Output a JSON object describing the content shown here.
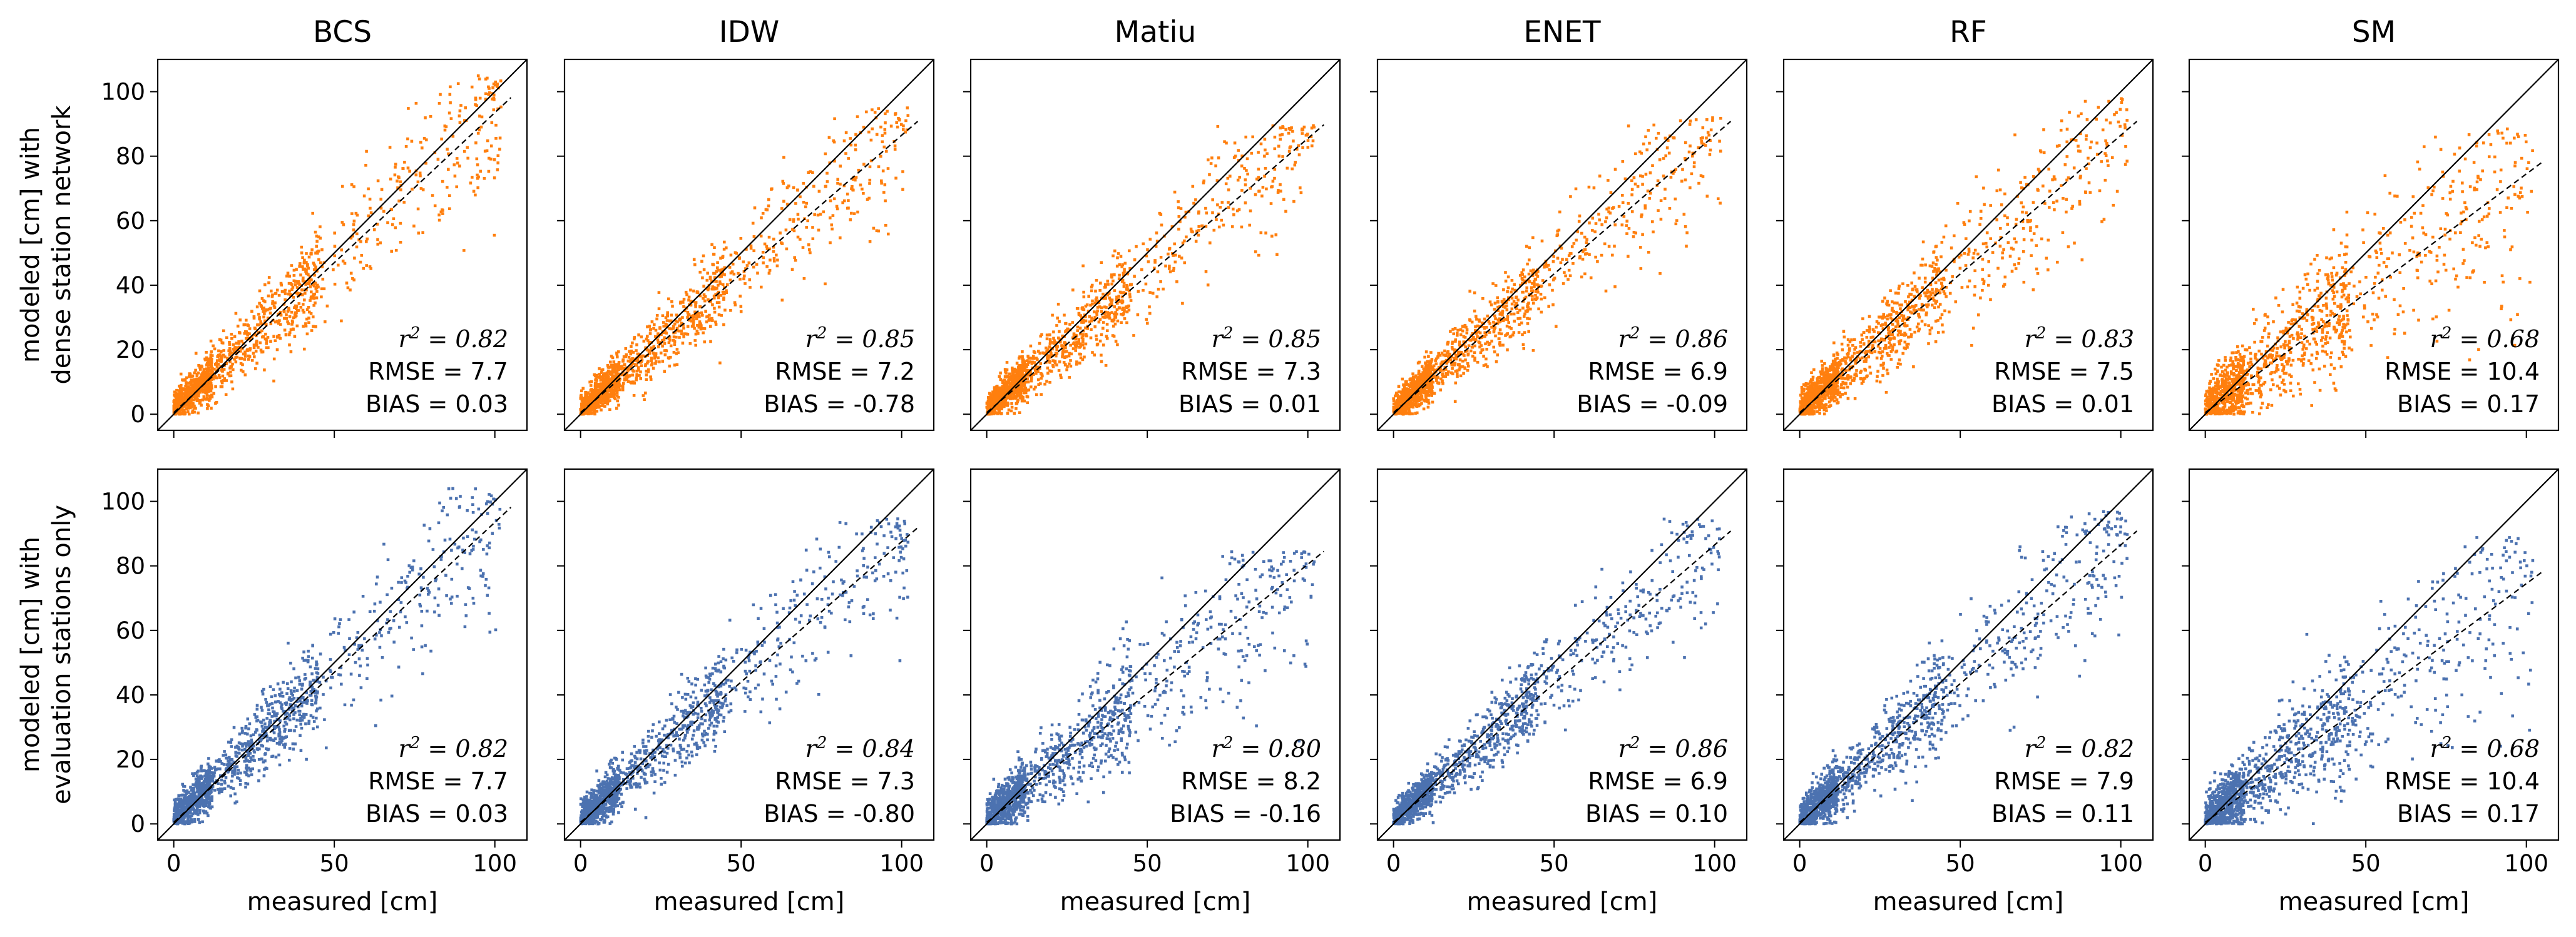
{
  "chart_data": {
    "type": "scatter",
    "layout": "2 rows x 6 columns",
    "columns": [
      "BCS",
      "IDW",
      "Matiu",
      "ENET",
      "RF",
      "SM"
    ],
    "rows": [
      {
        "ylabel_line1": "modeled [cm] with",
        "ylabel_line2": "dense station network",
        "color": "#ff7f0e"
      },
      {
        "ylabel_line1": "modeled [cm] with",
        "ylabel_line2": "evaluation stations only",
        "color": "#4c72b0"
      }
    ],
    "xlabel": "measured [cm]",
    "xlim": [
      -5,
      110
    ],
    "ylim": [
      -5,
      110
    ],
    "xticks": [
      0,
      50,
      100
    ],
    "yticks": [
      0,
      20,
      40,
      60,
      80,
      100
    ],
    "identity_line": "1:1 solid black",
    "fit_line": "dashed black regression",
    "r2_label": "r² = ",
    "panels": [
      [
        {
          "method": "BCS",
          "r2": "0.82",
          "rmse": "7.7",
          "bias": "0.03",
          "slope": 0.93,
          "scatter": 1.0,
          "max": 105
        },
        {
          "method": "IDW",
          "r2": "0.85",
          "rmse": "7.2",
          "bias": "-0.78",
          "slope": 0.86,
          "scatter": 0.9,
          "max": 95
        },
        {
          "method": "Matiu",
          "r2": "0.85",
          "rmse": "7.3",
          "bias": "0.01",
          "slope": 0.85,
          "scatter": 0.9,
          "max": 90
        },
        {
          "method": "ENET",
          "r2": "0.86",
          "rmse": "6.9",
          "bias": "-0.09",
          "slope": 0.86,
          "scatter": 0.85,
          "max": 92
        },
        {
          "method": "RF",
          "r2": "0.83",
          "rmse": "7.5",
          "bias": "0.01",
          "slope": 0.86,
          "scatter": 1.0,
          "max": 98
        },
        {
          "method": "SM",
          "r2": "0.68",
          "rmse": "10.4",
          "bias": "0.17",
          "slope": 0.74,
          "scatter": 1.4,
          "max": 89
        }
      ],
      [
        {
          "method": "BCS",
          "r2": "0.82",
          "rmse": "7.7",
          "bias": "0.03",
          "slope": 0.93,
          "scatter": 1.0,
          "max": 105
        },
        {
          "method": "IDW",
          "r2": "0.84",
          "rmse": "7.3",
          "bias": "-0.80",
          "slope": 0.87,
          "scatter": 0.95,
          "max": 95
        },
        {
          "method": "Matiu",
          "r2": "0.80",
          "rmse": "8.2",
          "bias": "-0.16",
          "slope": 0.8,
          "scatter": 1.15,
          "max": 85
        },
        {
          "method": "ENET",
          "r2": "0.86",
          "rmse": "6.9",
          "bias": "0.10",
          "slope": 0.86,
          "scatter": 0.85,
          "max": 95
        },
        {
          "method": "RF",
          "r2": "0.82",
          "rmse": "7.9",
          "bias": "0.11",
          "slope": 0.86,
          "scatter": 1.05,
          "max": 97
        },
        {
          "method": "SM",
          "r2": "0.68",
          "rmse": "10.4",
          "bias": "0.17",
          "slope": 0.74,
          "scatter": 1.4,
          "max": 89
        }
      ]
    ]
  }
}
